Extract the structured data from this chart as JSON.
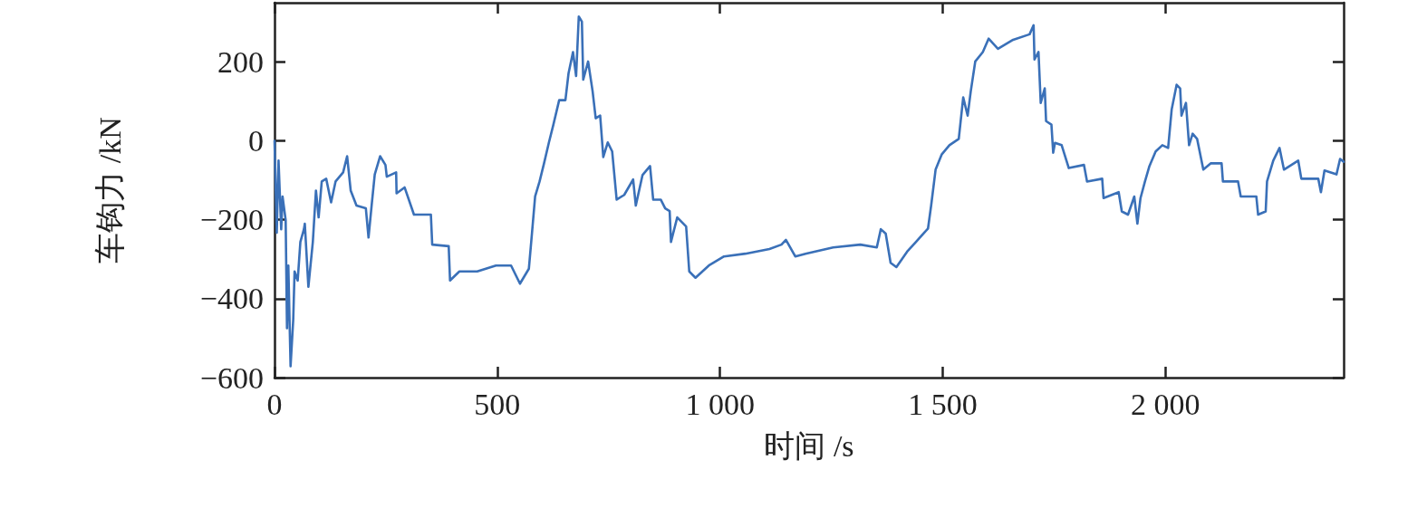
{
  "chart_data": {
    "type": "line",
    "xlabel": "时间 /s",
    "ylabel": "车钩力 /kN",
    "xlim": [
      0,
      2400
    ],
    "xticks": [
      0,
      500,
      {
        "value": 1000,
        "label": "1 000"
      },
      {
        "value": 1500,
        "label": "1 500"
      },
      {
        "value": 2000,
        "label": "2 000"
      }
    ],
    "ylim": [
      -600,
      350
    ],
    "yticks": [
      {
        "value": -600,
        "label": "−600"
      },
      {
        "value": -400,
        "label": "−400"
      },
      {
        "value": -200,
        "label": "−200"
      },
      0,
      200
    ],
    "marker": "none",
    "line_style": "solid",
    "series": [
      {
        "color": "#3a70b8",
        "x": [
          0,
          5,
          9,
          15,
          18,
          25,
          28,
          31,
          36,
          42,
          45,
          52,
          58,
          66,
          68,
          76,
          86,
          93,
          99,
          106,
          116,
          127,
          137,
          154,
          163,
          171,
          184,
          205,
          211,
          218,
          225,
          237,
          249,
          252,
          273,
          274,
          292,
          313,
          351,
          354,
          391,
          394,
          415,
          455,
          497,
          531,
          551,
          571,
          578,
          585,
          595,
          605,
          616,
          626,
          639,
          653,
          660,
          670,
          677,
          683,
          690,
          693,
          704,
          714,
          721,
          731,
          738,
          748,
          758,
          768,
          785,
          805,
          811,
          826,
          843,
          850,
          867,
          877,
          887,
          890,
          904,
          924,
          931,
          945,
          975,
          1009,
          1057,
          1111,
          1138,
          1148,
          1169,
          1192,
          1254,
          1315,
          1352,
          1361,
          1372,
          1383,
          1396,
          1420,
          1440,
          1467,
          1474,
          1484,
          1498,
          1515,
          1536,
          1546,
          1556,
          1563,
          1573,
          1590,
          1603,
          1624,
          1658,
          1695,
          1704,
          1706,
          1715,
          1720,
          1729,
          1732,
          1744,
          1748,
          1752,
          1767,
          1783,
          1817,
          1824,
          1858,
          1861,
          1895,
          1902,
          1916,
          1930,
          1937,
          1944,
          1954,
          1964,
          1978,
          1993,
          2006,
          2014,
          2025,
          2033,
          2036,
          2046,
          2053,
          2061,
          2071,
          2085,
          2102,
          2126,
          2129,
          2163,
          2169,
          2204,
          2208,
          2225,
          2228,
          2242,
          2256,
          2266,
          2298,
          2305,
          2343,
          2349,
          2357,
          2384,
          2392,
          2400
        ],
        "values": [
          0,
          -233,
          -50,
          -224,
          -141,
          -201,
          -475,
          -316,
          -571,
          -453,
          -331,
          -354,
          -256,
          -224,
          -210,
          -370,
          -256,
          -126,
          -194,
          -103,
          -96,
          -156,
          -103,
          -80,
          -39,
          -126,
          -164,
          -171,
          -245,
          -164,
          -85,
          -39,
          -61,
          -91,
          -80,
          -133,
          -118,
          -187,
          -187,
          -263,
          -267,
          -354,
          -331,
          -331,
          -316,
          -316,
          -362,
          -324,
          -233,
          -141,
          -103,
          -57,
          -4,
          41,
          103,
          103,
          171,
          225,
          164,
          315,
          302,
          155,
          201,
          126,
          57,
          64,
          -41,
          -4,
          -27,
          -149,
          -137,
          -98,
          -164,
          -87,
          -64,
          -149,
          -149,
          -171,
          -178,
          -256,
          -194,
          -217,
          -331,
          -347,
          -316,
          -293,
          -286,
          -274,
          -263,
          -251,
          -293,
          -286,
          -270,
          -263,
          -270,
          -224,
          -235,
          -309,
          -320,
          -281,
          -256,
          -222,
          -164,
          -73,
          -34,
          -11,
          5,
          110,
          64,
          126,
          201,
          225,
          259,
          233,
          256,
          270,
          293,
          206,
          225,
          96,
          133,
          50,
          41,
          -30,
          -5,
          -11,
          -69,
          -61,
          -103,
          -96,
          -145,
          -130,
          -179,
          -187,
          -141,
          -210,
          -145,
          -103,
          -64,
          -27,
          -11,
          -18,
          80,
          142,
          133,
          64,
          96,
          -11,
          18,
          5,
          -73,
          -57,
          -57,
          -103,
          -103,
          -141,
          -141,
          -187,
          -179,
          -103,
          -50,
          -18,
          -73,
          -50,
          -96,
          -96,
          -130,
          -75,
          -85,
          -46,
          -53
        ]
      }
    ]
  }
}
